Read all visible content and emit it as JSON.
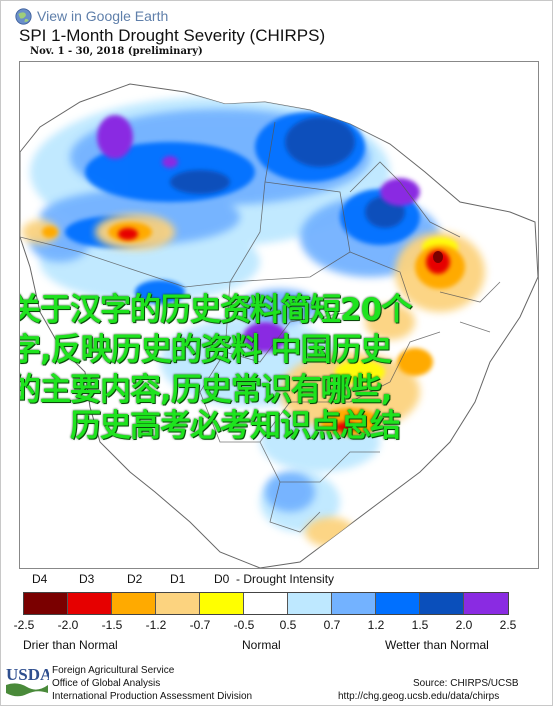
{
  "header": {
    "google_earth_link": "View in Google Earth",
    "title": "SPI 1-Month Drought Severity (CHIRPS)",
    "subtitle": "Nov. 1 - 30, 2018 (preliminary)"
  },
  "overlay_text": [
    "关于汉字的历史资料简短20个",
    "字,反映历史的资料 中国历史",
    "的主要内容,历史常识有哪些,",
    "历史高考必考知识点总结"
  ],
  "legend": {
    "categories": [
      "D4",
      "D3",
      "D2",
      "D1",
      "D0"
    ],
    "intensity_label": "- Drought Intensity",
    "colors": [
      "#7a0000",
      "#e60000",
      "#ffaa00",
      "#fcd37f",
      "#ffff00",
      "#ffffff",
      "#bee8ff",
      "#73b2ff",
      "#0070ff",
      "#0a4fbb",
      "#8a2be2"
    ],
    "ticks": [
      "-2.5",
      "-2.0",
      "-1.5",
      "-1.2",
      "-0.7",
      "-0.5",
      "0.5",
      "0.7",
      "1.2",
      "1.5",
      "2.0",
      "2.5"
    ],
    "drier_label": "Drier than Normal",
    "normal_label": "Normal",
    "wetter_label": "Wetter than Normal"
  },
  "footer": {
    "logo_text": "USDA",
    "agency_lines": [
      "Foreign Agricultural Service",
      "Office of Global Analysis",
      "International Production Assessment Division"
    ],
    "source_label": "Source: CHIRPS/UCSB",
    "source_url": "http://chg.geog.ucsb.edu/data/chirps"
  }
}
